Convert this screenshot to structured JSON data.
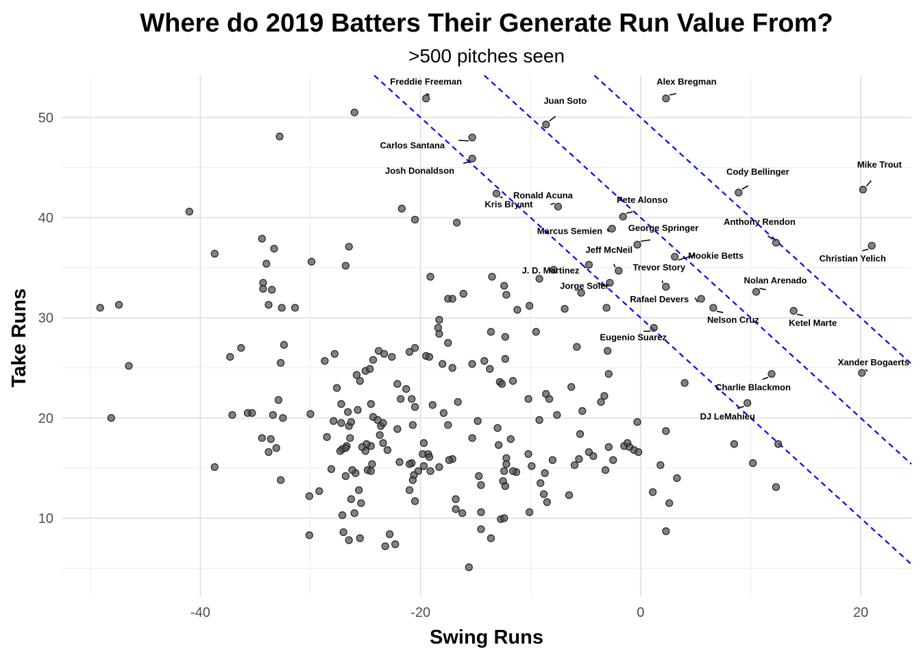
{
  "chart_data": {
    "type": "scatter",
    "title": "Where do 2019 Batters Their Generate Run Value From?",
    "subtitle": ">500 pitches seen",
    "xlabel": "Swing Runs",
    "ylabel": "Take Runs",
    "xlim": [
      -52.6,
      24.6
    ],
    "ylim": [
      2.2,
      54.2
    ],
    "x_ticks": [
      -40,
      -20,
      0,
      20
    ],
    "x_tick_labels": [
      "-40",
      "-20",
      "0",
      "20"
    ],
    "y_ticks": [
      10,
      20,
      30,
      40,
      50
    ],
    "y_tick_labels": [
      "10",
      "20",
      "30",
      "40",
      "50"
    ],
    "grid": true,
    "point_color": "#4d4d4d",
    "reference_line_color": "#0000ff",
    "reference_lines": [
      {
        "slope": -1,
        "intercept": 30
      },
      {
        "slope": -1,
        "intercept": 40
      },
      {
        "slope": -1,
        "intercept": 50
      }
    ],
    "labeled_points": [
      {
        "name": "Freddie Freeman",
        "x": -19.5,
        "y": 51.9
      },
      {
        "name": "Alex Bregman",
        "x": 2.3,
        "y": 51.9
      },
      {
        "name": "Juan Soto",
        "x": -8.6,
        "y": 49.3
      },
      {
        "name": "Carlos Santana",
        "x": -15.3,
        "y": 48.0
      },
      {
        "name": "Josh Donaldson",
        "x": -15.3,
        "y": 45.9
      },
      {
        "name": "Kris Bryant",
        "x": -13.1,
        "y": 42.4
      },
      {
        "name": "Ronald Acuna",
        "x": -7.5,
        "y": 41.1
      },
      {
        "name": "Mike Trout",
        "x": 20.2,
        "y": 42.8
      },
      {
        "name": "Cody Bellinger",
        "x": 8.9,
        "y": 42.5
      },
      {
        "name": "Pete Alonso",
        "x": -1.6,
        "y": 40.1
      },
      {
        "name": "Marcus Semien",
        "x": -2.6,
        "y": 38.9
      },
      {
        "name": "George Springer",
        "x": -0.3,
        "y": 37.3
      },
      {
        "name": "Anthony Rendon",
        "x": 12.3,
        "y": 37.5
      },
      {
        "name": "Christian Yelich",
        "x": 21.0,
        "y": 37.2
      },
      {
        "name": "Mookie Betts",
        "x": 3.1,
        "y": 36.1
      },
      {
        "name": "Jeff McNeil",
        "x": -2.0,
        "y": 34.7
      },
      {
        "name": "J. D. Martinez",
        "x": -4.7,
        "y": 35.3
      },
      {
        "name": "Trevor Story",
        "x": 2.3,
        "y": 33.1
      },
      {
        "name": "Jorge Soler",
        "x": -2.8,
        "y": 33.5
      },
      {
        "name": "Nolan Arenado",
        "x": 10.5,
        "y": 32.6
      },
      {
        "name": "Rafael Devers",
        "x": 5.5,
        "y": 31.9
      },
      {
        "name": "Nelson Cruz",
        "x": 6.6,
        "y": 31.0
      },
      {
        "name": "Ketel Marte",
        "x": 13.9,
        "y": 30.7
      },
      {
        "name": "Eugenio Suarez",
        "x": 1.2,
        "y": 29.0
      },
      {
        "name": "Xander Bogaerts",
        "x": 20.1,
        "y": 24.5
      },
      {
        "name": "Charlie Blackmon",
        "x": 11.9,
        "y": 24.4
      },
      {
        "name": "DJ LeMahieu",
        "x": 9.7,
        "y": 21.5
      }
    ],
    "points": [
      [
        -26.0,
        50.5
      ],
      [
        -32.8,
        48.1
      ],
      [
        -41.0,
        40.6
      ],
      [
        -21.7,
        40.9
      ],
      [
        -20.5,
        39.8
      ],
      [
        -16.7,
        39.5
      ],
      [
        -34.4,
        37.9
      ],
      [
        -38.7,
        36.4
      ],
      [
        -33.3,
        36.9
      ],
      [
        -26.5,
        37.1
      ],
      [
        -29.9,
        35.6
      ],
      [
        -34.0,
        35.4
      ],
      [
        -26.8,
        35.2
      ],
      [
        -34.3,
        33.5
      ],
      [
        -33.5,
        32.8
      ],
      [
        -34.3,
        32.9
      ],
      [
        -32.6,
        31.0
      ],
      [
        -33.8,
        31.3
      ],
      [
        -31.4,
        31.0
      ],
      [
        -49.1,
        31.0
      ],
      [
        -47.4,
        31.3
      ],
      [
        -46.5,
        25.2
      ],
      [
        -48.1,
        20.0
      ],
      [
        -38.7,
        15.1
      ],
      [
        -37.1,
        20.3
      ],
      [
        -37.3,
        26.1
      ],
      [
        -36.3,
        27.0
      ],
      [
        -35.7,
        20.5
      ],
      [
        -34.4,
        18.0
      ],
      [
        -33.4,
        20.3
      ],
      [
        -32.9,
        21.8
      ],
      [
        -32.7,
        25.5
      ],
      [
        -32.4,
        27.3
      ],
      [
        -32.5,
        20.0
      ],
      [
        -33.6,
        17.9
      ],
      [
        -33.1,
        17.0
      ],
      [
        -33.8,
        16.6
      ],
      [
        -30.0,
        20.4
      ],
      [
        -28.7,
        25.7
      ],
      [
        -27.8,
        26.4
      ],
      [
        -27.6,
        23.0
      ],
      [
        -27.2,
        21.4
      ],
      [
        -27.9,
        19.7
      ],
      [
        -26.6,
        20.6
      ],
      [
        -25.7,
        20.8
      ],
      [
        -25.8,
        24.3
      ],
      [
        -25.0,
        24.7
      ],
      [
        -25.5,
        23.7
      ],
      [
        -23.8,
        26.7
      ],
      [
        -23.3,
        26.4
      ],
      [
        -24.3,
        25.8
      ],
      [
        -22.6,
        26.1
      ],
      [
        -24.6,
        24.9
      ],
      [
        -22.1,
        23.4
      ],
      [
        -21.8,
        21.9
      ],
      [
        -21.3,
        22.9
      ],
      [
        -20.8,
        21.9
      ],
      [
        -20.5,
        21.1
      ],
      [
        -21.0,
        26.6
      ],
      [
        -20.5,
        27.0
      ],
      [
        -19.5,
        26.2
      ],
      [
        -19.2,
        26.1
      ],
      [
        -18.3,
        28.4
      ],
      [
        -18.4,
        29.0
      ],
      [
        -18.3,
        29.8
      ],
      [
        -17.5,
        31.9
      ],
      [
        -17.1,
        31.9
      ],
      [
        -16.1,
        32.4
      ],
      [
        -19.1,
        34.1
      ],
      [
        -18.0,
        25.4
      ],
      [
        -17.5,
        27.5
      ],
      [
        -17.1,
        25.0
      ],
      [
        -16.6,
        21.6
      ],
      [
        -18.9,
        21.3
      ],
      [
        -17.9,
        20.5
      ],
      [
        -17.5,
        19.3
      ],
      [
        -15.3,
        25.4
      ],
      [
        -14.8,
        19.7
      ],
      [
        -14.2,
        25.7
      ],
      [
        -13.7,
        24.9
      ],
      [
        -13.6,
        28.6
      ],
      [
        -13.5,
        34.1
      ],
      [
        -12.4,
        33.2
      ],
      [
        -12.2,
        32.3
      ],
      [
        -12.3,
        28.1
      ],
      [
        -12.3,
        25.9
      ],
      [
        -12.8,
        23.6
      ],
      [
        -12.6,
        23.4
      ],
      [
        -11.6,
        23.7
      ],
      [
        -11.2,
        30.8
      ],
      [
        -10.1,
        31.2
      ],
      [
        -9.5,
        28.6
      ],
      [
        -9.2,
        33.9
      ],
      [
        -7.9,
        34.8
      ],
      [
        -6.9,
        30.9
      ],
      [
        -5.8,
        27.1
      ],
      [
        -5.4,
        32.5
      ],
      [
        -3.1,
        31.0
      ],
      [
        -2.9,
        24.4
      ],
      [
        -3.0,
        26.7
      ],
      [
        -3.3,
        22.2
      ],
      [
        -3.6,
        21.6
      ],
      [
        -6.3,
        23.1
      ],
      [
        -5.5,
        18.4
      ],
      [
        -5.3,
        20.7
      ],
      [
        -8.6,
        22.4
      ],
      [
        -8.3,
        21.9
      ],
      [
        -7.6,
        20.3
      ],
      [
        -9.2,
        19.8
      ],
      [
        -10.2,
        21.9
      ],
      [
        -11.8,
        17.9
      ],
      [
        -13.0,
        19.0
      ],
      [
        -12.9,
        17.3
      ],
      [
        -12.2,
        16.0
      ],
      [
        -12.2,
        15.4
      ],
      [
        -12.4,
        14.7
      ],
      [
        -11.3,
        14.6
      ],
      [
        -10.2,
        16.4
      ],
      [
        -9.9,
        15.2
      ],
      [
        -8.7,
        14.5
      ],
      [
        -8.0,
        15.8
      ],
      [
        -6.0,
        15.3
      ],
      [
        -5.6,
        15.9
      ],
      [
        -4.7,
        16.6
      ],
      [
        -4.3,
        16.2
      ],
      [
        -2.5,
        15.8
      ],
      [
        -3.2,
        14.8
      ],
      [
        -2.9,
        17.1
      ],
      [
        -1.5,
        17.2
      ],
      [
        -1.2,
        17.5
      ],
      [
        -1.0,
        17.1
      ],
      [
        -0.6,
        16.8
      ],
      [
        -0.3,
        19.6
      ],
      [
        -0.2,
        16.6
      ],
      [
        2.3,
        18.7
      ],
      [
        1.8,
        15.3
      ],
      [
        1.1,
        12.6
      ],
      [
        3.3,
        14.0
      ],
      [
        2.6,
        11.5
      ],
      [
        2.3,
        8.7
      ],
      [
        4.0,
        23.5
      ],
      [
        8.5,
        17.4
      ],
      [
        10.2,
        15.5
      ],
      [
        12.3,
        13.1
      ],
      [
        12.5,
        17.4
      ],
      [
        -12.5,
        13.7
      ],
      [
        -12.3,
        13.2
      ],
      [
        -11.6,
        14.7
      ],
      [
        -9.1,
        13.5
      ],
      [
        -8.8,
        12.4
      ],
      [
        -8.5,
        11.6
      ],
      [
        -6.5,
        12.3
      ],
      [
        -10.1,
        10.6
      ],
      [
        -12.7,
        9.9
      ],
      [
        -12.4,
        10.0
      ],
      [
        -14.5,
        13.3
      ],
      [
        -14.7,
        14.2
      ],
      [
        -15.3,
        18.0
      ],
      [
        -14.5,
        10.6
      ],
      [
        -14.5,
        8.9
      ],
      [
        -13.6,
        8.0
      ],
      [
        -15.6,
        5.1
      ],
      [
        -16.2,
        10.5
      ],
      [
        -16.8,
        10.9
      ],
      [
        -16.8,
        11.9
      ],
      [
        -17.1,
        15.9
      ],
      [
        -17.4,
        15.8
      ],
      [
        -18.3,
        15.1
      ],
      [
        -19.1,
        14.7
      ],
      [
        -19.7,
        17.5
      ],
      [
        -19.8,
        16.4
      ],
      [
        -19.3,
        16.4
      ],
      [
        -19.2,
        16.1
      ],
      [
        -19.7,
        15.2
      ],
      [
        -20.2,
        14.7
      ],
      [
        -20.6,
        14.3
      ],
      [
        -20.8,
        15.5
      ],
      [
        -21.0,
        15.4
      ],
      [
        -20.7,
        19.3
      ],
      [
        -22.1,
        18.9
      ],
      [
        -21.9,
        15.6
      ],
      [
        -20.5,
        11.7
      ],
      [
        -21.0,
        12.8
      ],
      [
        -20.7,
        13.8
      ],
      [
        -23.6,
        19.2
      ],
      [
        -23.4,
        19.5
      ],
      [
        -24.3,
        20.1
      ],
      [
        -23.9,
        19.8
      ],
      [
        -24.5,
        21.4
      ],
      [
        -23.7,
        18.3
      ],
      [
        -23.4,
        17.5
      ],
      [
        -23.0,
        16.8
      ],
      [
        -24.5,
        17.2
      ],
      [
        -24.9,
        17.4
      ],
      [
        -25.0,
        16.7
      ],
      [
        -24.8,
        14.8
      ],
      [
        -24.5,
        14.7
      ],
      [
        -24.4,
        15.4
      ],
      [
        -25.9,
        14.5
      ],
      [
        -25.3,
        17.1
      ],
      [
        -25.6,
        12.8
      ],
      [
        -25.4,
        11.5
      ],
      [
        -26.3,
        11.9
      ],
      [
        -26.2,
        14.8
      ],
      [
        -26.0,
        10.5
      ],
      [
        -25.5,
        8.0
      ],
      [
        -23.2,
        7.2
      ],
      [
        -22.3,
        7.4
      ],
      [
        -22.8,
        8.4
      ],
      [
        -26.5,
        7.8
      ],
      [
        -27.0,
        8.6
      ],
      [
        -27.1,
        10.3
      ],
      [
        -26.8,
        14.2
      ],
      [
        -27.1,
        16.9
      ],
      [
        -26.7,
        17.2
      ],
      [
        -26.8,
        17.0
      ],
      [
        -26.4,
        18.0
      ],
      [
        -26.5,
        19.2
      ],
      [
        -26.3,
        19.6
      ],
      [
        -27.2,
        19.5
      ],
      [
        -28.1,
        14.9
      ],
      [
        -28.5,
        18.1
      ],
      [
        -27.3,
        16.7
      ],
      [
        -29.2,
        12.7
      ],
      [
        -30.1,
        12.2
      ],
      [
        -30.1,
        8.3
      ],
      [
        -32.7,
        13.8
      ],
      [
        -35.3,
        20.5
      ]
    ]
  }
}
